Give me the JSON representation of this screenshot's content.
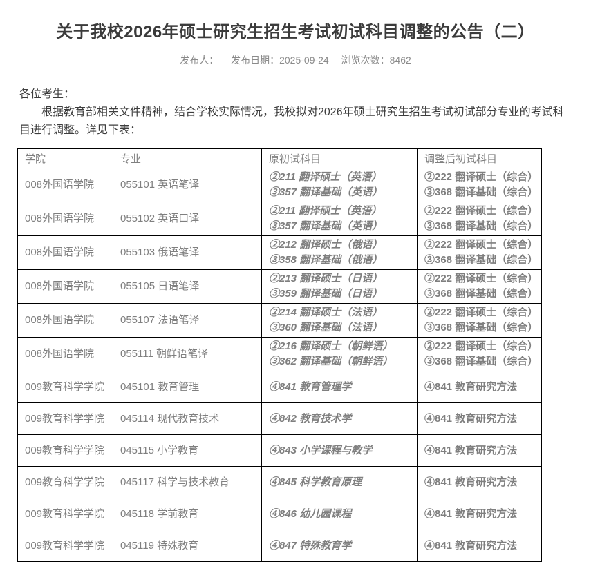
{
  "colors": {
    "title_text": "#3b3b3b",
    "meta_text": "#8b8b8b",
    "body_text": "#3d3d3d",
    "table_text": "#7f7f7f",
    "table_border": "#000000",
    "background": "#ffffff"
  },
  "page": {
    "title": "关于我校2026年硕士研究生招生考试初试科目调整的公告（二）",
    "meta": {
      "publisher_label": "发布人：",
      "date_label": "发布日期：",
      "date": "2025-09-24",
      "views_label": "浏览次数：",
      "views": "8462"
    },
    "salutation": "各位考生：",
    "intro": "根据教育部相关文件精神，结合学校实际情况，我校拟对2026年硕士研究生招生考试初试部分专业的考试科目进行调整。详见下表："
  },
  "table": {
    "headers": [
      "学院",
      "专业",
      "原初试科目",
      "调整后初试科目"
    ],
    "rows": [
      {
        "college": "008外国语学院",
        "major": "055101 英语笔译",
        "original": [
          "②211 翻译硕士（英语）",
          "③357 翻译基础（英语）"
        ],
        "adjusted": [
          "②222 翻译硕士（综合）",
          "③368 翻译基础（综合）"
        ]
      },
      {
        "college": "008外国语学院",
        "major": "055102 英语口译",
        "original": [
          "②211 翻译硕士（英语）",
          "③357 翻译基础（英语）"
        ],
        "adjusted": [
          "②222 翻译硕士（综合）",
          "③368 翻译基础（综合）"
        ]
      },
      {
        "college": "008外国语学院",
        "major": "055103 俄语笔译",
        "original": [
          "②212 翻译硕士（俄语）",
          "③358 翻译基础（俄语）"
        ],
        "adjusted": [
          "②222 翻译硕士（综合）",
          "③368 翻译基础（综合）"
        ]
      },
      {
        "college": "008外国语学院",
        "major": "055105 日语笔译",
        "original": [
          "②213 翻译硕士（日语）",
          "③359 翻译基础（日语）"
        ],
        "adjusted": [
          "②222 翻译硕士（综合）",
          "③368 翻译基础（综合）"
        ]
      },
      {
        "college": "008外国语学院",
        "major": "055107 法语笔译",
        "original": [
          "②214 翻译硕士（法语）",
          "③360 翻译基础（法语）"
        ],
        "adjusted": [
          "②222 翻译硕士（综合）",
          "③368 翻译基础（综合）"
        ]
      },
      {
        "college": "008外国语学院",
        "major": "055111 朝鲜语笔译",
        "original": [
          "②216 翻译硕士（朝鲜语）",
          "③362 翻译基础（朝鲜语）"
        ],
        "adjusted": [
          "②222 翻译硕士（综合）",
          "③368 翻译基础（综合）"
        ]
      },
      {
        "college": "009教育科学学院",
        "major": "045101 教育管理",
        "original": [
          "④841 教育管理学"
        ],
        "adjusted": [
          "④841 教育研究方法"
        ]
      },
      {
        "college": "009教育科学学院",
        "major": "045114 现代教育技术",
        "original": [
          "④842 教育技术学"
        ],
        "adjusted": [
          "④841 教育研究方法"
        ]
      },
      {
        "college": "009教育科学学院",
        "major": "045115 小学教育",
        "original": [
          "④843 小学课程与教学"
        ],
        "adjusted": [
          "④841 教育研究方法"
        ]
      },
      {
        "college": "009教育科学学院",
        "major": "045117 科学与技术教育",
        "original": [
          "④845 科学教育原理"
        ],
        "adjusted": [
          "④841 教育研究方法"
        ]
      },
      {
        "college": "009教育科学学院",
        "major": "045118 学前教育",
        "original": [
          "④846 幼儿园课程"
        ],
        "adjusted": [
          "④841 教育研究方法"
        ]
      },
      {
        "college": "009教育科学学院",
        "major": "045119 特殊教育",
        "original": [
          "④847 特殊教育学"
        ],
        "adjusted": [
          "④841 教育研究方法"
        ]
      }
    ]
  }
}
